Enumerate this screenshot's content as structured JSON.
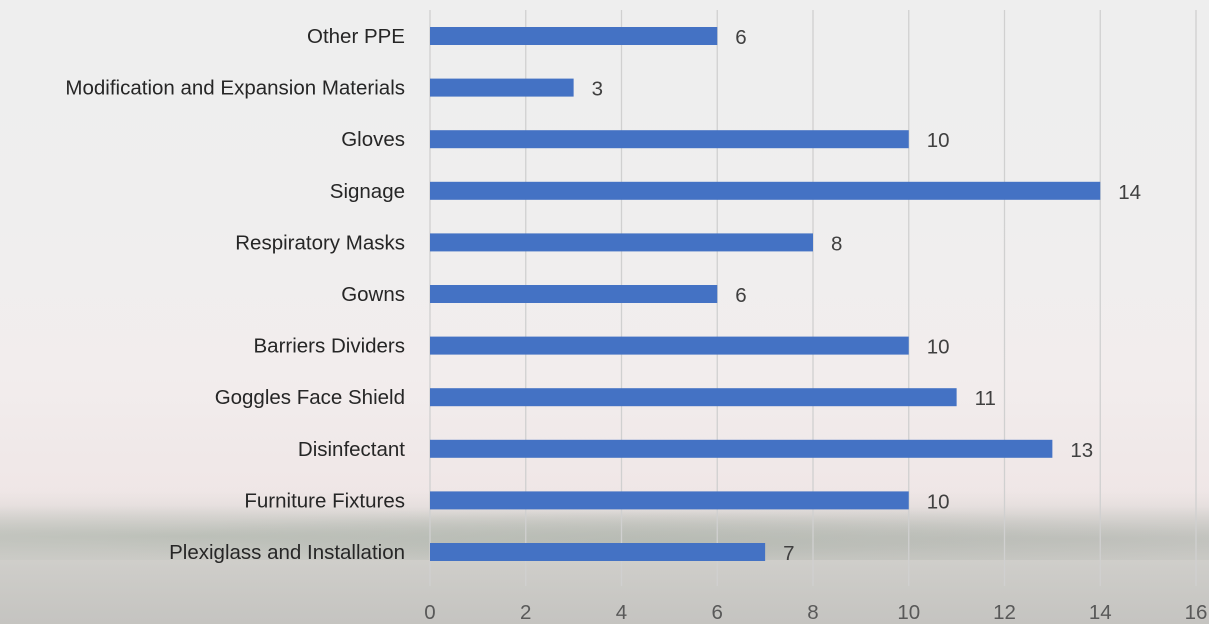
{
  "chart_data": {
    "type": "bar",
    "orientation": "horizontal",
    "categories": [
      "Other PPE",
      "Modification and Expansion Materials",
      "Gloves",
      "Signage",
      "Respiratory Masks",
      "Gowns",
      "Barriers Dividers",
      "Goggles Face Shield",
      "Disinfectant",
      "Furniture Fixtures",
      "Plexiglass and Installation"
    ],
    "values": [
      6,
      3,
      10,
      14,
      8,
      6,
      10,
      11,
      13,
      10,
      7
    ],
    "title": "",
    "xlabel": "",
    "ylabel": "",
    "xlim": [
      0,
      16
    ],
    "x_ticks": [
      "0",
      "2",
      "4",
      "6",
      "8",
      "10",
      "12",
      "14",
      "16"
    ],
    "grid": "vertical",
    "data_labels": true,
    "legend": "none",
    "colors": {
      "bar": "#4472c4",
      "grid": "#d0d0d0"
    }
  }
}
